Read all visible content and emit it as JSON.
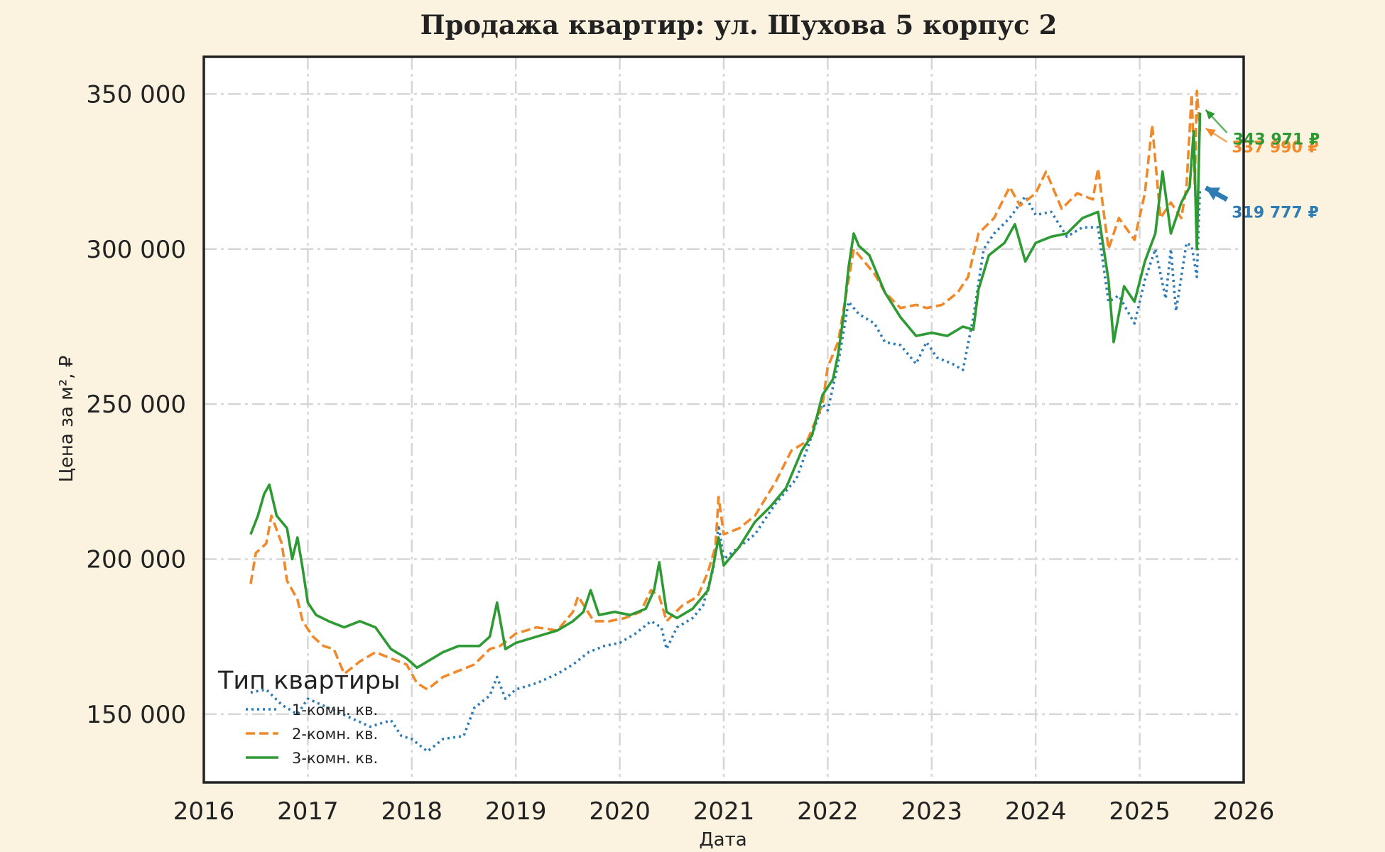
{
  "chart_data": {
    "type": "line",
    "title": "Продажа квартир: ул. Шухова 5 корпус 2",
    "xlabel": "Дата",
    "ylabel": "Цена за м², ₽",
    "xlim": [
      2016,
      2026
    ],
    "ylim": [
      128000,
      362000
    ],
    "xticks": [
      {
        "value": 2016,
        "label": "2016"
      },
      {
        "value": 2017,
        "label": "2017"
      },
      {
        "value": 2018,
        "label": "2018"
      },
      {
        "value": 2019,
        "label": "2019"
      },
      {
        "value": 2020,
        "label": "2020"
      },
      {
        "value": 2021,
        "label": "2021"
      },
      {
        "value": 2022,
        "label": "2022"
      },
      {
        "value": 2023,
        "label": "2023"
      },
      {
        "value": 2024,
        "label": "2024"
      },
      {
        "value": 2025,
        "label": "2025"
      },
      {
        "value": 2026,
        "label": "2026"
      }
    ],
    "yticks": [
      {
        "value": 150000,
        "label": "150 000"
      },
      {
        "value": 200000,
        "label": "200 000"
      },
      {
        "value": 250000,
        "label": "250 000"
      },
      {
        "value": 300000,
        "label": "300 000"
      },
      {
        "value": 350000,
        "label": "350 000"
      }
    ],
    "grid": true,
    "legend": {
      "title": "Тип квартиры",
      "position": "bottom-left"
    },
    "series": [
      {
        "name": "1-комн. кв.",
        "color": "#2f7bb4",
        "style": "dotted",
        "points": [
          [
            2016.45,
            157000
          ],
          [
            2016.6,
            158000
          ],
          [
            2016.75,
            153000
          ],
          [
            2016.9,
            150000
          ],
          [
            2017.0,
            155000
          ],
          [
            2017.2,
            152000
          ],
          [
            2017.4,
            149000
          ],
          [
            2017.6,
            146000
          ],
          [
            2017.8,
            148000
          ],
          [
            2017.9,
            143000
          ],
          [
            2018.0,
            142000
          ],
          [
            2018.15,
            138000
          ],
          [
            2018.3,
            142000
          ],
          [
            2018.5,
            143000
          ],
          [
            2018.6,
            152000
          ],
          [
            2018.75,
            156000
          ],
          [
            2018.82,
            162000
          ],
          [
            2018.9,
            155000
          ],
          [
            2019.0,
            158000
          ],
          [
            2019.2,
            160000
          ],
          [
            2019.4,
            163000
          ],
          [
            2019.55,
            166000
          ],
          [
            2019.7,
            170000
          ],
          [
            2019.85,
            172000
          ],
          [
            2020.0,
            173000
          ],
          [
            2020.15,
            176000
          ],
          [
            2020.3,
            180000
          ],
          [
            2020.4,
            178000
          ],
          [
            2020.45,
            171000
          ],
          [
            2020.55,
            178000
          ],
          [
            2020.7,
            181000
          ],
          [
            2020.8,
            185000
          ],
          [
            2020.9,
            197000
          ],
          [
            2020.95,
            211000
          ],
          [
            2021.0,
            200000
          ],
          [
            2021.15,
            204000
          ],
          [
            2021.3,
            208000
          ],
          [
            2021.5,
            218000
          ],
          [
            2021.7,
            226000
          ],
          [
            2021.85,
            240000
          ],
          [
            2021.95,
            250000
          ],
          [
            2022.0,
            248000
          ],
          [
            2022.1,
            263000
          ],
          [
            2022.2,
            283000
          ],
          [
            2022.3,
            279000
          ],
          [
            2022.45,
            276000
          ],
          [
            2022.55,
            270000
          ],
          [
            2022.7,
            269000
          ],
          [
            2022.85,
            263000
          ],
          [
            2022.95,
            270000
          ],
          [
            2023.05,
            265000
          ],
          [
            2023.2,
            263000
          ],
          [
            2023.3,
            261000
          ],
          [
            2023.4,
            278000
          ],
          [
            2023.5,
            300000
          ],
          [
            2023.6,
            305000
          ],
          [
            2023.75,
            310000
          ],
          [
            2023.9,
            317000
          ],
          [
            2024.0,
            311000
          ],
          [
            2024.15,
            312000
          ],
          [
            2024.3,
            304000
          ],
          [
            2024.45,
            307000
          ],
          [
            2024.6,
            307000
          ],
          [
            2024.7,
            283000
          ],
          [
            2024.8,
            285000
          ],
          [
            2024.95,
            276000
          ],
          [
            2025.05,
            290000
          ],
          [
            2025.15,
            300000
          ],
          [
            2025.25,
            284000
          ],
          [
            2025.3,
            300000
          ],
          [
            2025.35,
            280000
          ],
          [
            2025.45,
            302000
          ],
          [
            2025.5,
            301000
          ],
          [
            2025.55,
            291000
          ],
          [
            2025.58,
            319777
          ]
        ]
      },
      {
        "name": "2-комн. кв.",
        "color": "#f0892a",
        "style": "dashed",
        "points": [
          [
            2016.45,
            192000
          ],
          [
            2016.5,
            202000
          ],
          [
            2016.6,
            205000
          ],
          [
            2016.65,
            214000
          ],
          [
            2016.75,
            205000
          ],
          [
            2016.8,
            193000
          ],
          [
            2016.9,
            187000
          ],
          [
            2016.95,
            180000
          ],
          [
            2017.05,
            175000
          ],
          [
            2017.15,
            172000
          ],
          [
            2017.25,
            171000
          ],
          [
            2017.35,
            163000
          ],
          [
            2017.5,
            167000
          ],
          [
            2017.65,
            170000
          ],
          [
            2017.8,
            168000
          ],
          [
            2017.95,
            166000
          ],
          [
            2018.05,
            160000
          ],
          [
            2018.15,
            158000
          ],
          [
            2018.3,
            162000
          ],
          [
            2018.45,
            164000
          ],
          [
            2018.6,
            166000
          ],
          [
            2018.75,
            171000
          ],
          [
            2018.85,
            172000
          ],
          [
            2019.0,
            176000
          ],
          [
            2019.2,
            178000
          ],
          [
            2019.4,
            177000
          ],
          [
            2019.55,
            183000
          ],
          [
            2019.6,
            188000
          ],
          [
            2019.75,
            180000
          ],
          [
            2019.9,
            180000
          ],
          [
            2020.05,
            181000
          ],
          [
            2020.2,
            183000
          ],
          [
            2020.3,
            190000
          ],
          [
            2020.38,
            188000
          ],
          [
            2020.45,
            180000
          ],
          [
            2020.6,
            185000
          ],
          [
            2020.75,
            188000
          ],
          [
            2020.85,
            196000
          ],
          [
            2020.92,
            204000
          ],
          [
            2020.95,
            220000
          ],
          [
            2021.0,
            208000
          ],
          [
            2021.15,
            210000
          ],
          [
            2021.3,
            214000
          ],
          [
            2021.5,
            225000
          ],
          [
            2021.65,
            235000
          ],
          [
            2021.8,
            238000
          ],
          [
            2021.95,
            250000
          ],
          [
            2022.0,
            262000
          ],
          [
            2022.1,
            270000
          ],
          [
            2022.2,
            290000
          ],
          [
            2022.25,
            300000
          ],
          [
            2022.3,
            298000
          ],
          [
            2022.45,
            292000
          ],
          [
            2022.55,
            286000
          ],
          [
            2022.7,
            281000
          ],
          [
            2022.85,
            282000
          ],
          [
            2022.95,
            281000
          ],
          [
            2023.1,
            282000
          ],
          [
            2023.25,
            286000
          ],
          [
            2023.35,
            291000
          ],
          [
            2023.45,
            305000
          ],
          [
            2023.6,
            310000
          ],
          [
            2023.75,
            320000
          ],
          [
            2023.85,
            314000
          ],
          [
            2024.0,
            318000
          ],
          [
            2024.1,
            325000
          ],
          [
            2024.25,
            313000
          ],
          [
            2024.4,
            318000
          ],
          [
            2024.55,
            316000
          ],
          [
            2024.6,
            326000
          ],
          [
            2024.7,
            300000
          ],
          [
            2024.8,
            310000
          ],
          [
            2024.95,
            303000
          ],
          [
            2025.05,
            318000
          ],
          [
            2025.12,
            340000
          ],
          [
            2025.2,
            310000
          ],
          [
            2025.3,
            315000
          ],
          [
            2025.4,
            310000
          ],
          [
            2025.45,
            320000
          ],
          [
            2025.5,
            350000
          ],
          [
            2025.53,
            321000
          ],
          [
            2025.55,
            351000
          ],
          [
            2025.58,
            337990
          ]
        ]
      },
      {
        "name": "3-комн. кв.",
        "color": "#2e9a34",
        "style": "solid",
        "points": [
          [
            2016.45,
            208000
          ],
          [
            2016.52,
            214000
          ],
          [
            2016.58,
            221000
          ],
          [
            2016.63,
            224000
          ],
          [
            2016.7,
            214000
          ],
          [
            2016.8,
            210000
          ],
          [
            2016.85,
            200000
          ],
          [
            2016.9,
            207000
          ],
          [
            2016.95,
            197000
          ],
          [
            2017.0,
            186000
          ],
          [
            2017.08,
            182000
          ],
          [
            2017.2,
            180000
          ],
          [
            2017.35,
            178000
          ],
          [
            2017.5,
            180000
          ],
          [
            2017.65,
            178000
          ],
          [
            2017.8,
            171000
          ],
          [
            2017.95,
            168000
          ],
          [
            2018.05,
            165000
          ],
          [
            2018.15,
            167000
          ],
          [
            2018.3,
            170000
          ],
          [
            2018.45,
            172000
          ],
          [
            2018.55,
            172000
          ],
          [
            2018.65,
            172000
          ],
          [
            2018.75,
            175000
          ],
          [
            2018.82,
            186000
          ],
          [
            2018.9,
            171000
          ],
          [
            2019.0,
            173000
          ],
          [
            2019.2,
            175000
          ],
          [
            2019.4,
            177000
          ],
          [
            2019.55,
            180000
          ],
          [
            2019.65,
            183000
          ],
          [
            2019.72,
            190000
          ],
          [
            2019.8,
            182000
          ],
          [
            2019.95,
            183000
          ],
          [
            2020.1,
            182000
          ],
          [
            2020.25,
            184000
          ],
          [
            2020.33,
            190000
          ],
          [
            2020.38,
            199000
          ],
          [
            2020.45,
            183000
          ],
          [
            2020.55,
            181000
          ],
          [
            2020.7,
            184000
          ],
          [
            2020.85,
            190000
          ],
          [
            2020.9,
            198000
          ],
          [
            2020.95,
            207000
          ],
          [
            2021.0,
            198000
          ],
          [
            2021.15,
            204000
          ],
          [
            2021.3,
            212000
          ],
          [
            2021.45,
            217000
          ],
          [
            2021.6,
            223000
          ],
          [
            2021.75,
            235000
          ],
          [
            2021.85,
            240000
          ],
          [
            2021.95,
            253000
          ],
          [
            2022.05,
            258000
          ],
          [
            2022.1,
            266000
          ],
          [
            2022.15,
            278000
          ],
          [
            2022.2,
            294000
          ],
          [
            2022.25,
            305000
          ],
          [
            2022.3,
            301000
          ],
          [
            2022.4,
            298000
          ],
          [
            2022.55,
            286000
          ],
          [
            2022.7,
            278000
          ],
          [
            2022.85,
            272000
          ],
          [
            2023.0,
            273000
          ],
          [
            2023.15,
            272000
          ],
          [
            2023.3,
            275000
          ],
          [
            2023.4,
            274000
          ],
          [
            2023.45,
            287000
          ],
          [
            2023.55,
            298000
          ],
          [
            2023.7,
            302000
          ],
          [
            2023.8,
            308000
          ],
          [
            2023.9,
            296000
          ],
          [
            2024.0,
            302000
          ],
          [
            2024.15,
            304000
          ],
          [
            2024.3,
            305000
          ],
          [
            2024.45,
            310000
          ],
          [
            2024.6,
            312000
          ],
          [
            2024.7,
            290000
          ],
          [
            2024.75,
            270000
          ],
          [
            2024.85,
            288000
          ],
          [
            2024.95,
            283000
          ],
          [
            2025.05,
            296000
          ],
          [
            2025.15,
            305000
          ],
          [
            2025.22,
            325000
          ],
          [
            2025.3,
            305000
          ],
          [
            2025.4,
            315000
          ],
          [
            2025.48,
            320000
          ],
          [
            2025.52,
            338000
          ],
          [
            2025.55,
            300000
          ],
          [
            2025.58,
            343971
          ]
        ]
      }
    ],
    "annotations": [
      {
        "series": 0,
        "label": "319 777 ₽",
        "value": 319777,
        "x": 2025.58,
        "color": "#2f7bb4"
      },
      {
        "series": 1,
        "label": "337 990 ₽",
        "value": 337990,
        "x": 2025.58,
        "color": "#f0892a"
      },
      {
        "series": 2,
        "label": "343 971 ₽",
        "value": 343971,
        "x": 2025.58,
        "color": "#2e9a34"
      }
    ]
  }
}
